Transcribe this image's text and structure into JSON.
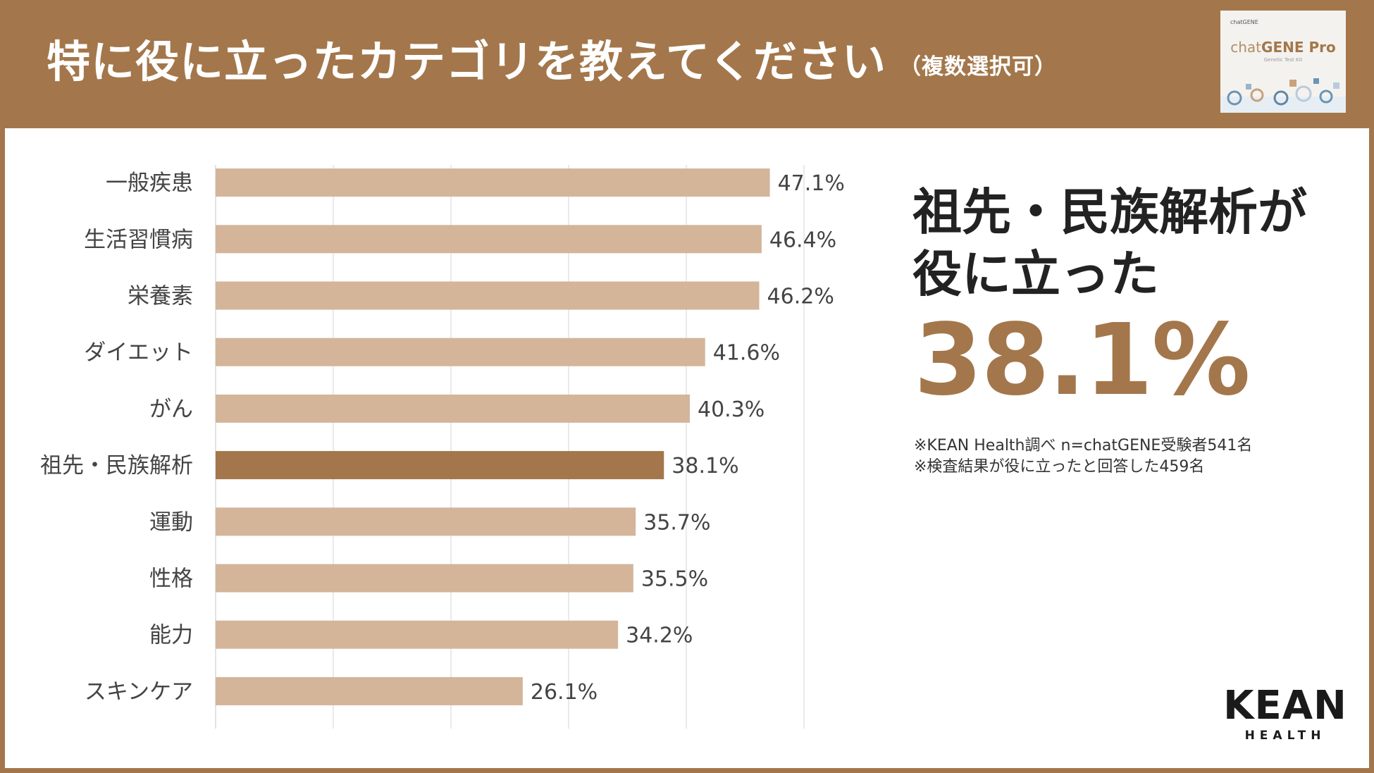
{
  "header": {
    "title": "特に役に立ったカテゴリを教えてください",
    "subtitle": "（複数選択可）"
  },
  "product": {
    "small_brand": "chatGENE",
    "name_light": "chat",
    "name_bold": "GENE Pro",
    "kit": "Genetic Test Kit"
  },
  "highlight": {
    "heading_line1": "祖先・民族解析が",
    "heading_line2": "役に立った",
    "value": "38.1%"
  },
  "notes": [
    "※KEAN Health調べ n=chatGENE受験者541名",
    "※検査結果が役に立ったと回答した459名"
  ],
  "logo": {
    "main": "KEAN",
    "sub": "HEALTH"
  },
  "colors": {
    "brand": "#a3774b",
    "bar": "#d4b59a",
    "bar_highlight": "#a3774b",
    "grid": "#e3e3e3"
  },
  "chart_data": {
    "type": "bar",
    "orientation": "horizontal",
    "categories": [
      "一般疾患",
      "生活習慣病",
      "栄養素",
      "ダイエット",
      "がん",
      "祖先・民族解析",
      "運動",
      "性格",
      "能力",
      "スキンケア"
    ],
    "values": [
      47.1,
      46.4,
      46.2,
      41.6,
      40.3,
      38.1,
      35.7,
      35.5,
      34.2,
      26.1
    ],
    "value_labels": [
      "47.1%",
      "46.4%",
      "46.2%",
      "41.6%",
      "40.3%",
      "38.1%",
      "35.7%",
      "35.5%",
      "34.2%",
      "26.1%"
    ],
    "highlight_index": 5,
    "xlim": [
      0,
      50
    ],
    "grid": true,
    "unit": "%"
  }
}
